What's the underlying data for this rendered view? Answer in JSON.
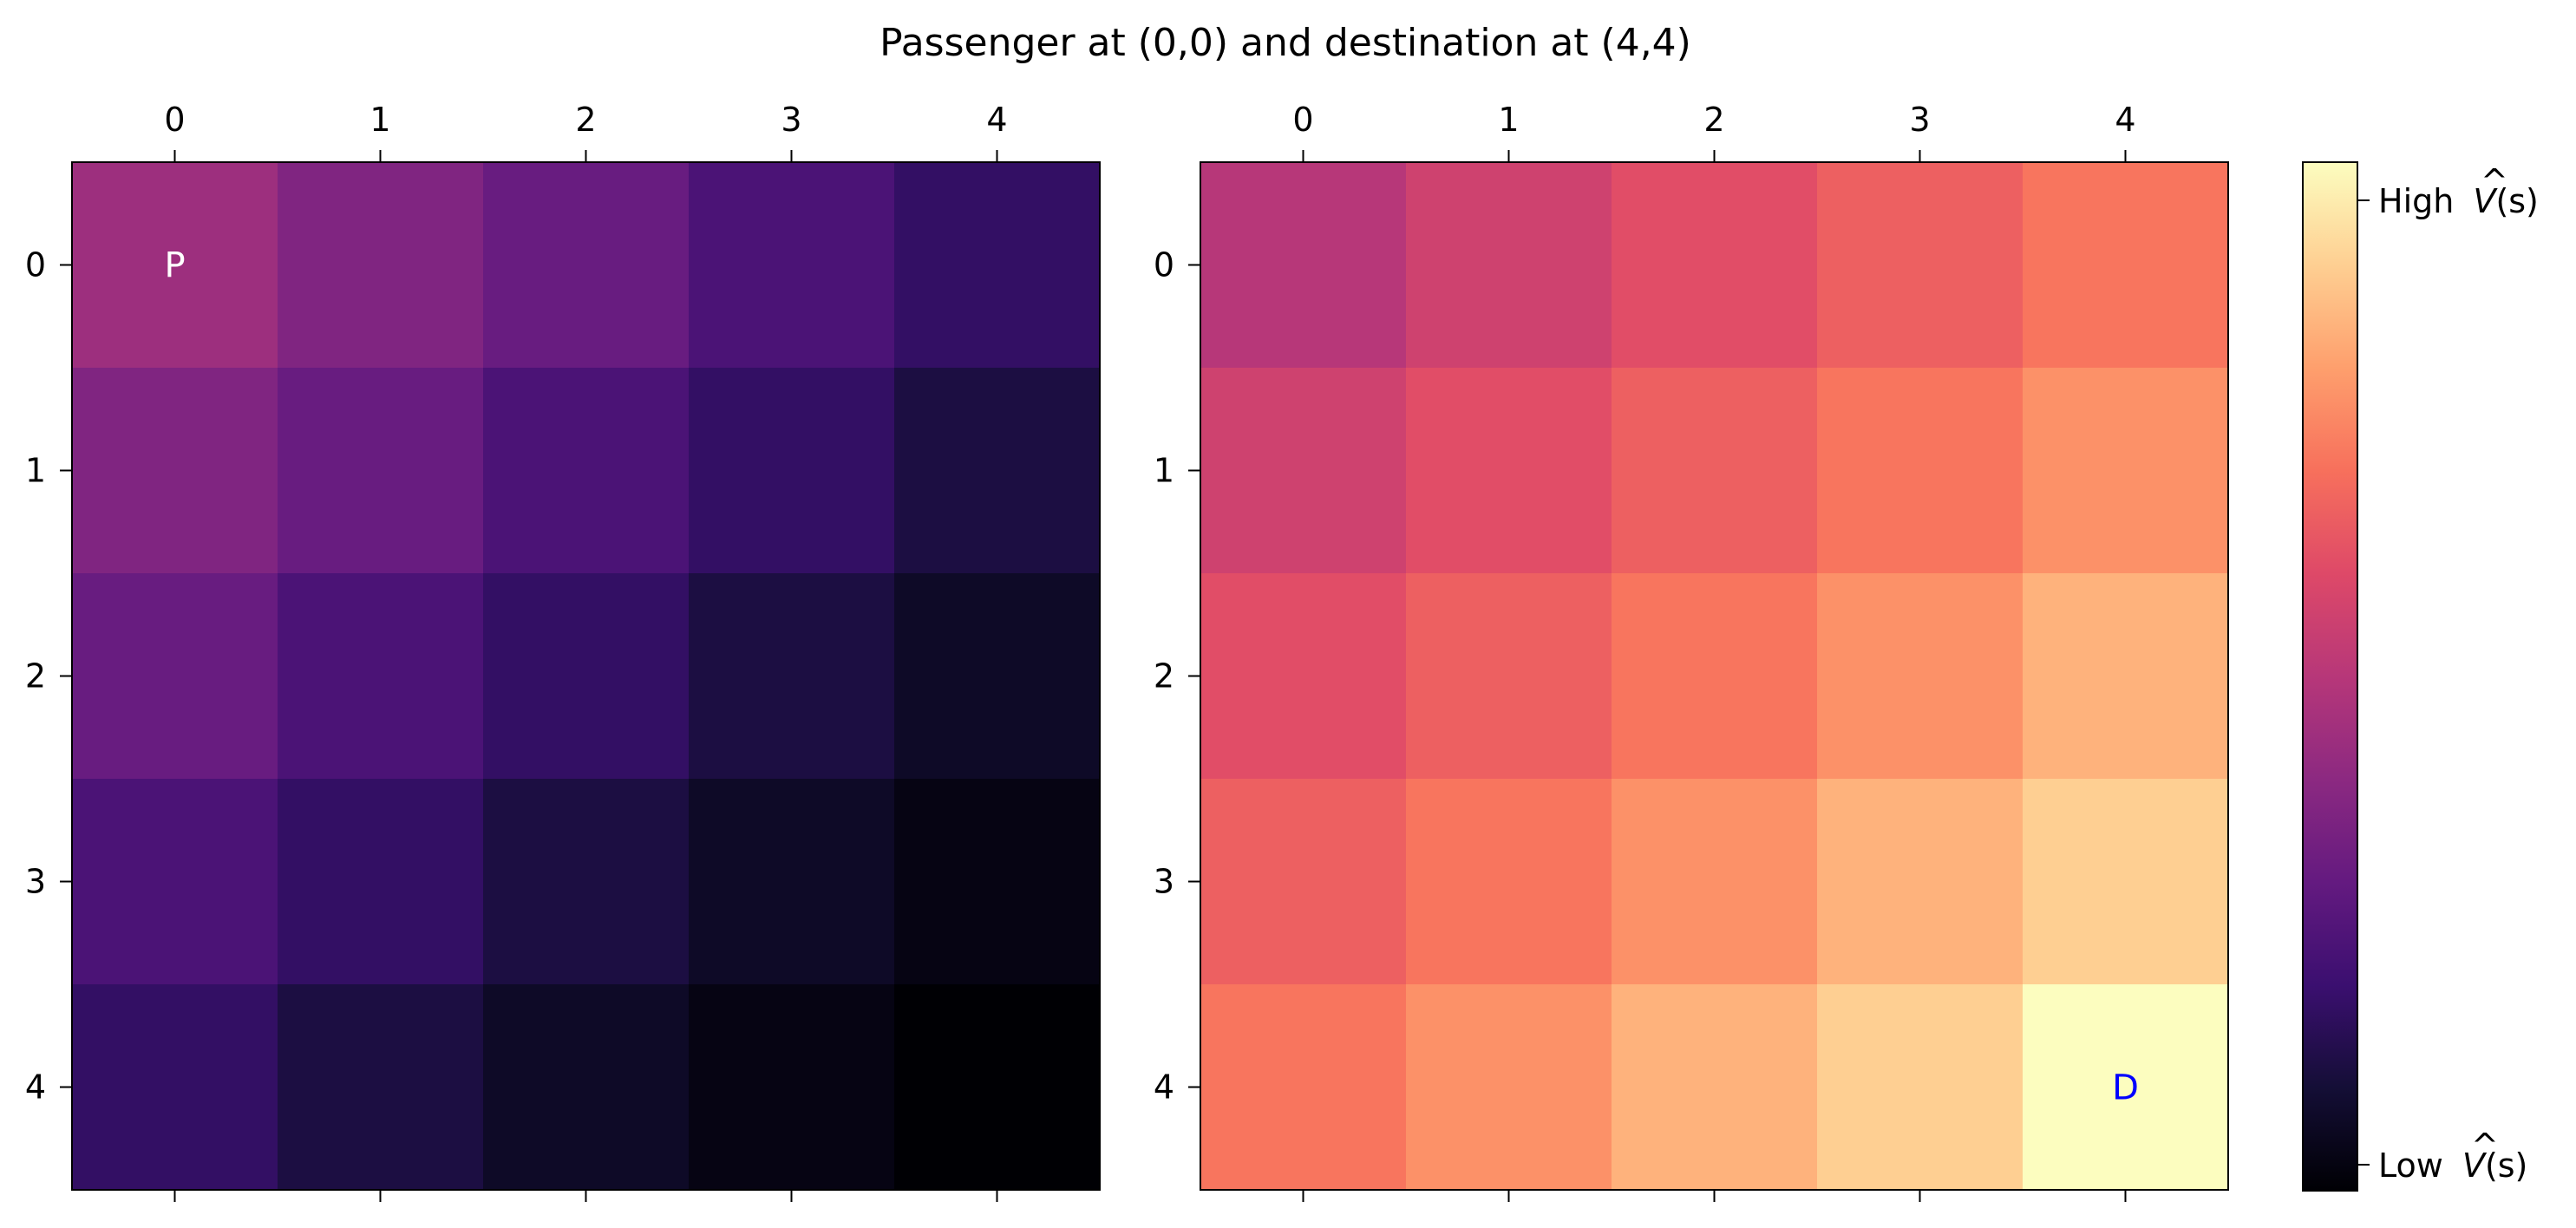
{
  "figure": {
    "title": "Passenger at (0,0) and destination at (4,4)"
  },
  "chart_data": [
    {
      "type": "heatmap",
      "panel": "left",
      "x": [
        0,
        1,
        2,
        3,
        4
      ],
      "y": [
        0,
        1,
        2,
        3,
        4
      ],
      "values": [
        [
          0.44,
          0.37,
          0.31,
          0.24,
          0.18
        ],
        [
          0.37,
          0.31,
          0.24,
          0.18,
          0.12
        ],
        [
          0.31,
          0.24,
          0.18,
          0.12,
          0.07
        ],
        [
          0.24,
          0.18,
          0.12,
          0.07,
          0.03
        ],
        [
          0.18,
          0.12,
          0.07,
          0.03,
          0.0
        ]
      ],
      "colormap": "magma",
      "annotations": [
        {
          "row": 0,
          "col": 0,
          "text": "P",
          "color": "#ffffff"
        }
      ]
    },
    {
      "type": "heatmap",
      "panel": "right",
      "x": [
        0,
        1,
        2,
        3,
        4
      ],
      "y": [
        0,
        1,
        2,
        3,
        4
      ],
      "values": [
        [
          0.5,
          0.56,
          0.61,
          0.66,
          0.71
        ],
        [
          0.56,
          0.61,
          0.66,
          0.71,
          0.77
        ],
        [
          0.61,
          0.66,
          0.71,
          0.77,
          0.84
        ],
        [
          0.66,
          0.71,
          0.77,
          0.84,
          0.9
        ],
        [
          0.71,
          0.77,
          0.84,
          0.9,
          1.0
        ]
      ],
      "colormap": "magma",
      "annotations": [
        {
          "row": 4,
          "col": 4,
          "text": "D",
          "color": "#0000ff"
        }
      ]
    }
  ],
  "colorbar": {
    "colormap": "magma",
    "range": [
      0,
      1
    ],
    "high_label": "High",
    "low_label": "Low",
    "symbol_v": "V",
    "symbol_hat": "^",
    "symbol_args": "(s)"
  }
}
